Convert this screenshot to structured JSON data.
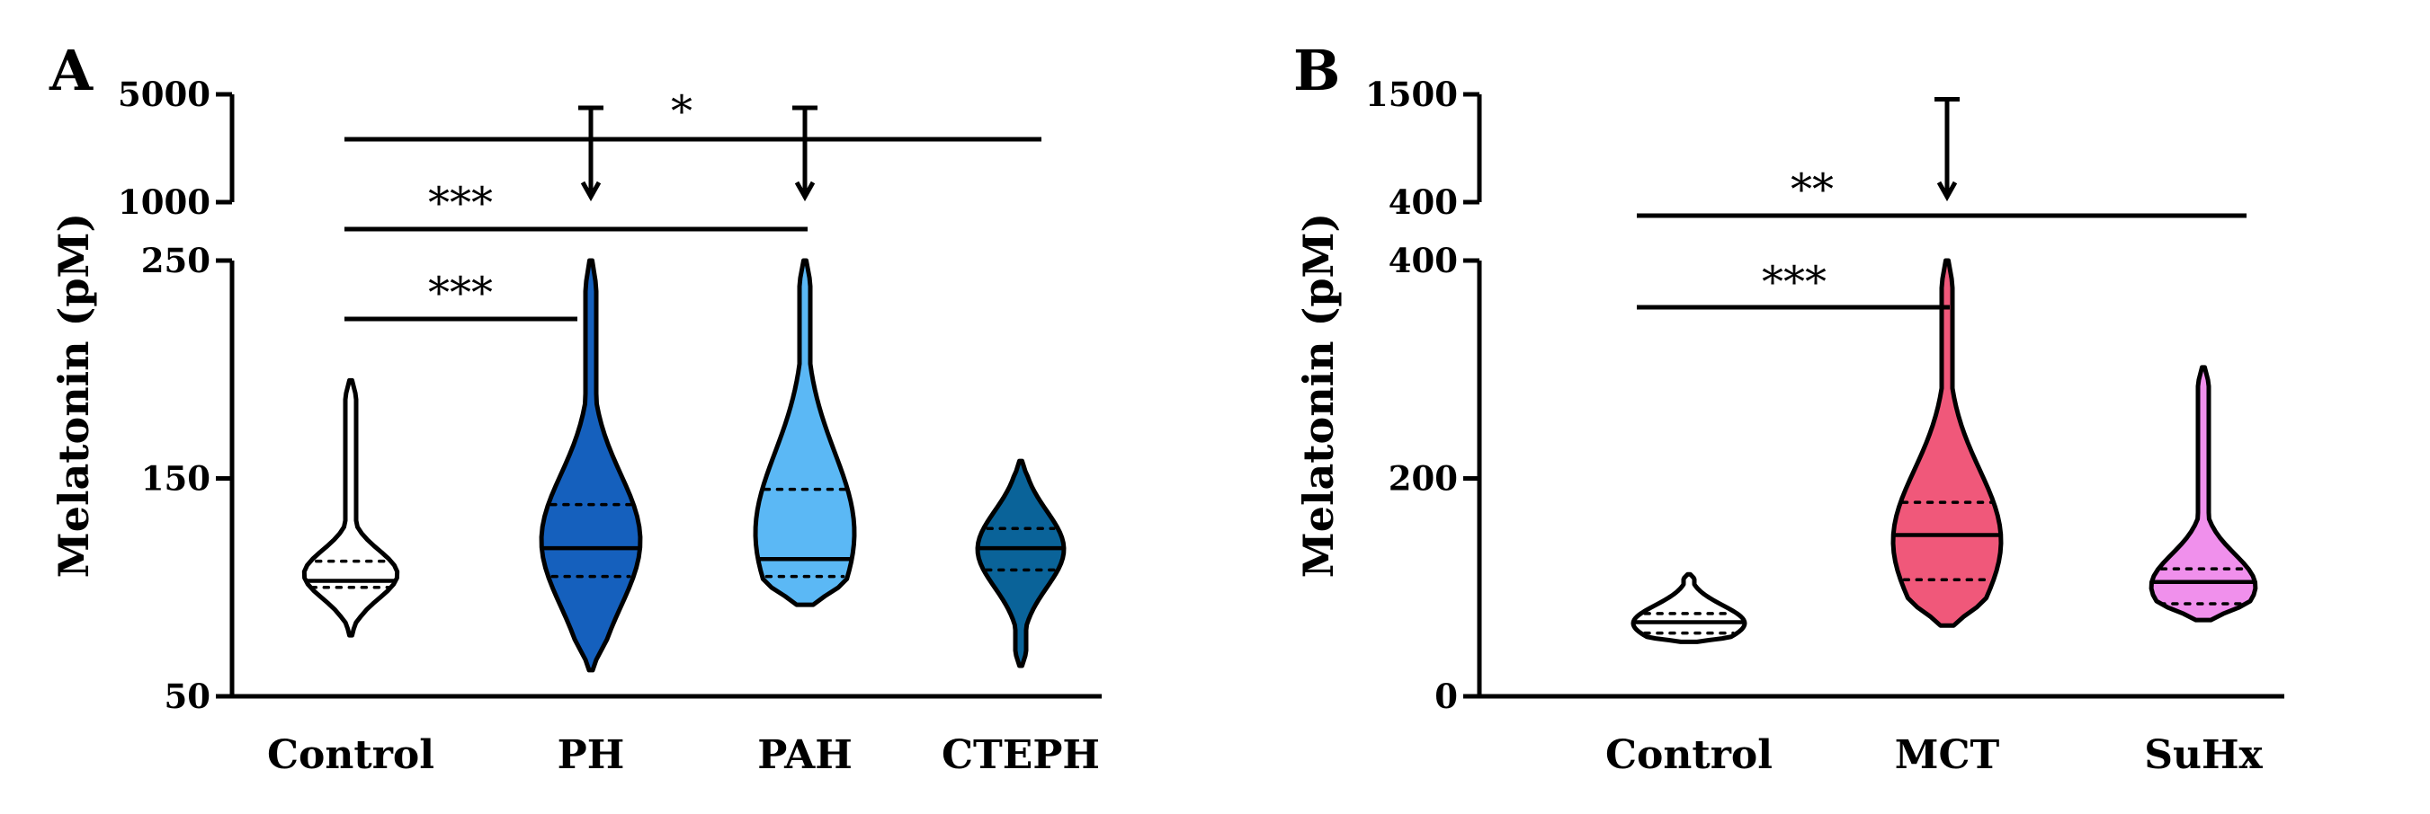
{
  "chart_data": [
    {
      "type": "violin",
      "panel_label": "A",
      "ylabel": "Melatonin (pM)",
      "axis_break": true,
      "y_lower_range": [
        50,
        250
      ],
      "y_lower_ticks": [
        "50",
        "150",
        "250"
      ],
      "y_upper_range": [
        1000,
        5000
      ],
      "y_upper_ticks": [
        "1000",
        "5000"
      ],
      "categories": [
        "Control",
        "PH",
        "PAH",
        "CTEPH"
      ],
      "colors": [
        "#ffffff",
        "#1560bd",
        "#5bb8f5",
        "#0a6399"
      ],
      "series": [
        {
          "group": "Control",
          "min": 78,
          "q1": 100,
          "median": 103,
          "q3": 112,
          "max": 195,
          "upper_outlier_max": null
        },
        {
          "group": "PH",
          "min": 62,
          "q1": 105,
          "median": 118,
          "q3": 138,
          "max": 250,
          "upper_outlier_max": 4500
        },
        {
          "group": "PAH",
          "min": 92,
          "q1": 105,
          "median": 113,
          "q3": 145,
          "max": 250,
          "upper_outlier_max": 4500
        },
        {
          "group": "CTEPH",
          "min": 64,
          "q1": 108,
          "median": 118,
          "q3": 127,
          "max": 158,
          "upper_outlier_max": null
        }
      ],
      "significance": [
        {
          "from": "Control",
          "to": "PH",
          "label": "***"
        },
        {
          "from": "Control",
          "to": "PAH",
          "label": "***"
        },
        {
          "from": "Control",
          "to": "CTEPH",
          "label": "*"
        }
      ]
    },
    {
      "type": "violin",
      "panel_label": "B",
      "ylabel": "Melatonin (pM)",
      "axis_break": true,
      "y_lower_range": [
        0,
        400
      ],
      "y_lower_ticks": [
        "0",
        "200",
        "400"
      ],
      "y_upper_range": [
        400,
        1500
      ],
      "y_upper_ticks": [
        "400",
        "1500"
      ],
      "categories": [
        "Control",
        "MCT",
        "SuHx"
      ],
      "colors": [
        "#ffffff",
        "#f0587a",
        "#f090ec"
      ],
      "series": [
        {
          "group": "Control",
          "min": 50,
          "q1": 58,
          "median": 68,
          "q3": 76,
          "max": 112,
          "upper_outlier_max": null
        },
        {
          "group": "MCT",
          "min": 65,
          "q1": 107,
          "median": 148,
          "q3": 178,
          "max": 400,
          "upper_outlier_max": 1450
        },
        {
          "group": "SuHx",
          "min": 70,
          "q1": 85,
          "median": 105,
          "q3": 117,
          "max": 302,
          "upper_outlier_max": null
        }
      ],
      "significance": [
        {
          "from": "Control",
          "to": "MCT",
          "label": "***"
        },
        {
          "from": "Control",
          "to": "SuHx",
          "label": "**"
        }
      ]
    }
  ]
}
